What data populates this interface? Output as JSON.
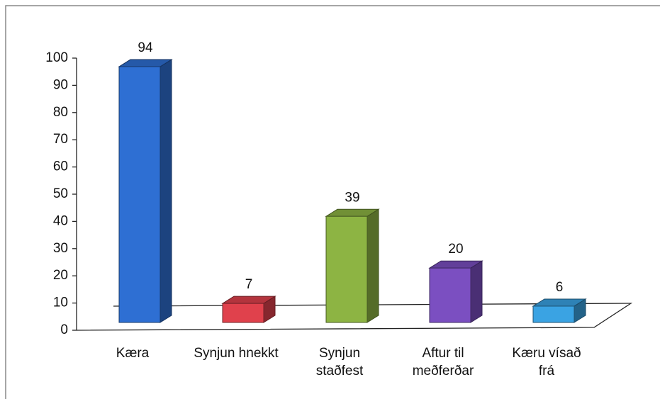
{
  "chart_data": {
    "type": "bar3d",
    "categories": [
      "Kæra",
      "Synjun hnekkt",
      "Synjun staðfest",
      "Aftur til meðferðar",
      "Kæru vísað frá"
    ],
    "values": [
      94,
      7,
      39,
      20,
      6
    ],
    "colors": [
      "#2e6fd3",
      "#e0414c",
      "#8db443",
      "#7b4fc1",
      "#3aa3e3"
    ],
    "ylim": [
      0,
      100
    ],
    "yticks": [
      0,
      10,
      20,
      30,
      40,
      50,
      60,
      70,
      80,
      90,
      100
    ],
    "grid": false
  }
}
